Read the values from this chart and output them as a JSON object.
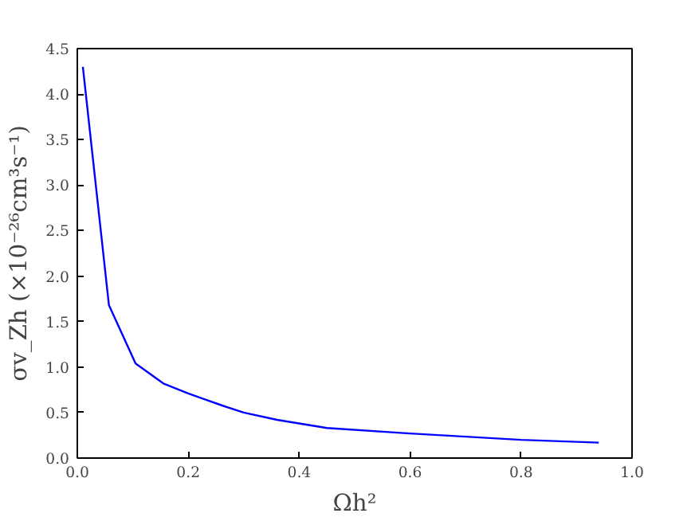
{
  "chart_data": {
    "type": "line",
    "xlabel": "Ωh²",
    "ylabel": "σv_Zh (×10⁻²⁶cm³s⁻¹)",
    "x": [
      0.01,
      0.057,
      0.105,
      0.155,
      0.2,
      0.26,
      0.3,
      0.36,
      0.45,
      0.6,
      0.8,
      0.94
    ],
    "series": [
      {
        "color": "#0000ff",
        "values": [
          4.3,
          1.68,
          1.04,
          0.82,
          0.71,
          0.58,
          0.5,
          0.42,
          0.33,
          0.27,
          0.2,
          0.17
        ]
      }
    ],
    "xlim": [
      0.0,
      1.0
    ],
    "ylim": [
      0.0,
      4.5
    ],
    "xticks": [
      {
        "value": 0,
        "label": "0.0"
      },
      0.2,
      0.4,
      0.6,
      0.8,
      {
        "value": 1,
        "label": "1.0"
      }
    ],
    "yticks": [
      {
        "value": 0,
        "label": "0.0"
      },
      0.5,
      {
        "value": 1,
        "label": "1.0"
      },
      1.5,
      {
        "value": 2,
        "label": "2.0"
      },
      2.5,
      {
        "value": 3,
        "label": "3.0"
      },
      3.5,
      {
        "value": 4,
        "label": "4.0"
      },
      4.5
    ],
    "grid": false,
    "line_style": "solid"
  }
}
